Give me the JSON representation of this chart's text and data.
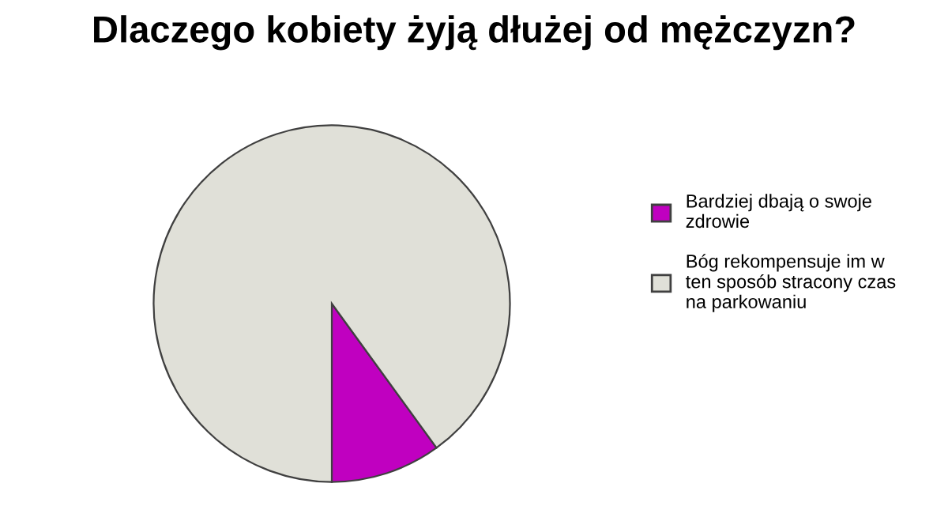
{
  "chart_data": {
    "type": "pie",
    "title": "Dlaczego kobiety żyją dłużej od mężczyzn?",
    "categories": [
      "Bardziej dbają o swoje zdrowie",
      "Bóg rekompensuje im w ten sposób stracony czas na parkowaniu"
    ],
    "values": [
      10,
      90
    ],
    "colors": [
      "#c000c0",
      "#e0e0d8"
    ],
    "legend": "right"
  }
}
